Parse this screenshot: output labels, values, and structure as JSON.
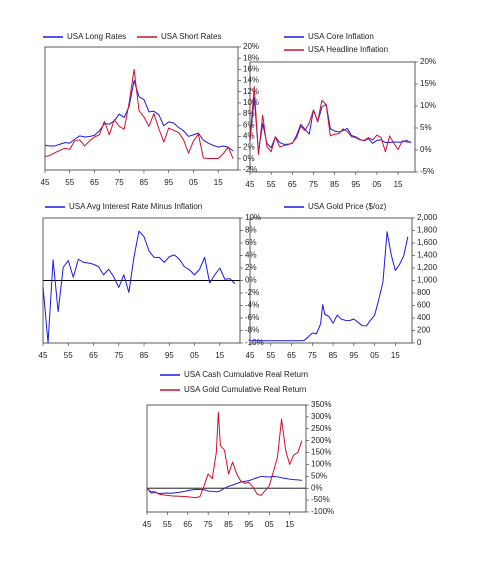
{
  "chart_data": [
    {
      "type": "line",
      "legend": "top",
      "y_axis_side": "right",
      "x": [
        1945,
        1947,
        1949,
        1951,
        1953,
        1955,
        1957,
        1959,
        1961,
        1963,
        1965,
        1967,
        1969,
        1971,
        1973,
        1975,
        1977,
        1979,
        1981,
        1983,
        1985,
        1987,
        1989,
        1991,
        1993,
        1995,
        1997,
        1999,
        2001,
        2003,
        2005,
        2007,
        2009,
        2011,
        2013,
        2015,
        2017,
        2019,
        2021
      ],
      "series": [
        {
          "name": "USA Long Rates",
          "color": "#1a1ae6",
          "values": [
            2.4,
            2.3,
            2.3,
            2.6,
            2.9,
            2.8,
            3.5,
            4.1,
            3.9,
            4.0,
            4.2,
            5.0,
            6.3,
            6.2,
            6.8,
            8.0,
            7.4,
            9.4,
            14,
            11.1,
            10.6,
            8.4,
            8.5,
            7.9,
            5.9,
            6.6,
            6.4,
            5.6,
            5.0,
            4.0,
            4.3,
            4.6,
            3.3,
            2.8,
            2.4,
            2.1,
            2.3,
            2.1,
            1.4
          ]
        },
        {
          "name": "USA Short Rates",
          "color": "#d0102b",
          "values": [
            0.4,
            0.6,
            1.1,
            1.5,
            1.9,
            1.7,
            3.2,
            3.4,
            2.3,
            3.2,
            3.9,
            4.3,
            6.7,
            4.3,
            7.0,
            5.8,
            5.3,
            10,
            16,
            8.6,
            7.5,
            5.8,
            8.1,
            5.4,
            3.0,
            5.5,
            5.1,
            4.7,
            3.4,
            1.0,
            3.2,
            4.4,
            0.15,
            0.05,
            0.06,
            0.05,
            0.9,
            2.1,
            0.05
          ]
        }
      ],
      "xlim": [
        1945,
        2023
      ],
      "xticks": [
        {
          "value": 1945,
          "label": "45"
        },
        {
          "value": 1955,
          "label": "55"
        },
        {
          "value": 1965,
          "label": "65"
        },
        {
          "value": 1975,
          "label": "75"
        },
        {
          "value": 1985,
          "label": "85"
        },
        {
          "value": 1995,
          "label": "95"
        },
        {
          "value": 2005,
          "label": "05"
        },
        {
          "value": 2015,
          "label": "15"
        }
      ],
      "ylim": [
        -2,
        20
      ],
      "yticks": [
        {
          "value": -2,
          "label": "-2%"
        },
        {
          "value": 0,
          "label": "0%"
        },
        {
          "value": 2,
          "label": "2%"
        },
        {
          "value": 4,
          "label": "4%"
        },
        {
          "value": 6,
          "label": "6%"
        },
        {
          "value": 8,
          "label": "8%"
        },
        {
          "value": 10,
          "label": "10%"
        },
        {
          "value": 12,
          "label": "12%"
        },
        {
          "value": 14,
          "label": "14%"
        },
        {
          "value": 16,
          "label": "16%"
        },
        {
          "value": 18,
          "label": "18%"
        },
        {
          "value": 20,
          "label": "20%"
        }
      ],
      "zero_line": false
    },
    {
      "type": "line",
      "legend": "top",
      "y_axis_side": "right",
      "x": [
        1945,
        1947,
        1949,
        1951,
        1953,
        1955,
        1957,
        1959,
        1961,
        1963,
        1965,
        1967,
        1969,
        1971,
        1973,
        1975,
        1977,
        1979,
        1981,
        1983,
        1985,
        1987,
        1989,
        1991,
        1993,
        1995,
        1997,
        1999,
        2001,
        2003,
        2005,
        2007,
        2009,
        2011,
        2013,
        2015,
        2017,
        2019,
        2021
      ],
      "series": [
        {
          "name": "USA Core Inflation",
          "color": "#1a1ae6",
          "values": [
            2.0,
            12,
            -0.5,
            6,
            1.5,
            0.5,
            3.0,
            1.7,
            1.3,
            1.3,
            1.5,
            3.3,
            5.8,
            4.7,
            3.6,
            9.1,
            6.4,
            9.8,
            10.4,
            4.8,
            4.3,
            4.1,
            4.4,
            4.9,
            3.3,
            3.0,
            2.4,
            2.1,
            2.6,
            1.5,
            2.2,
            2.3,
            1.7,
            1.7,
            1.8,
            1.8,
            1.8,
            2.2,
            1.6
          ]
        },
        {
          "name": "USA Headline Inflation",
          "color": "#d0102b",
          "values": [
            2.3,
            14.4,
            -1.0,
            7.9,
            0.8,
            -0.4,
            3.0,
            0.7,
            1.0,
            1.2,
            1.6,
            2.8,
            5.4,
            4.4,
            6.2,
            9.1,
            6.5,
            11.3,
            10.3,
            3.2,
            3.6,
            3.7,
            4.8,
            4.2,
            3.0,
            2.8,
            2.3,
            2.2,
            2.8,
            2.3,
            3.4,
            2.8,
            -0.4,
            3.2,
            1.5,
            0.1,
            2.1,
            1.8,
            1.9
          ]
        }
      ],
      "xlim": [
        1945,
        2023
      ],
      "xticks": [
        {
          "value": 1945,
          "label": "45"
        },
        {
          "value": 1955,
          "label": "55"
        },
        {
          "value": 1965,
          "label": "65"
        },
        {
          "value": 1975,
          "label": "75"
        },
        {
          "value": 1985,
          "label": "85"
        },
        {
          "value": 1995,
          "label": "95"
        },
        {
          "value": 2005,
          "label": "05"
        },
        {
          "value": 2015,
          "label": "15"
        }
      ],
      "ylim": [
        -5,
        20
      ],
      "yticks": [
        {
          "value": -5,
          "label": "-5%"
        },
        {
          "value": 0,
          "label": "0%"
        },
        {
          "value": 5,
          "label": "5%"
        },
        {
          "value": 10,
          "label": "10%"
        },
        {
          "value": 15,
          "label": "15%"
        },
        {
          "value": 20,
          "label": "20%"
        }
      ],
      "zero_line": false
    },
    {
      "type": "line",
      "legend": "top",
      "y_axis_side": "right",
      "x": [
        1945,
        1947,
        1949,
        1951,
        1953,
        1955,
        1957,
        1959,
        1961,
        1963,
        1965,
        1967,
        1969,
        1971,
        1973,
        1975,
        1977,
        1979,
        1981,
        1983,
        1985,
        1987,
        1989,
        1991,
        1993,
        1995,
        1997,
        1999,
        2001,
        2003,
        2005,
        2007,
        2009,
        2011,
        2013,
        2015,
        2017,
        2019,
        2021
      ],
      "series": [
        {
          "name": "USA Avg Interest Rate Minus Inflation",
          "color": "#1a1ae6",
          "values": [
            -1,
            -10,
            3.3,
            -5,
            2.1,
            3.2,
            0.5,
            3.4,
            2.9,
            2.8,
            2.6,
            2.2,
            0.9,
            1.8,
            0.6,
            -1.1,
            0.9,
            -1.9,
            3.7,
            7.9,
            7.0,
            4.7,
            3.7,
            3.7,
            2.9,
            3.8,
            4.1,
            3.4,
            2.2,
            1.7,
            0.9,
            1.8,
            3.7,
            -0.4,
            0.9,
            2.0,
            0.2,
            0.3,
            -0.5
          ]
        }
      ],
      "xlim": [
        1945,
        2023
      ],
      "xticks": [
        {
          "value": 1945,
          "label": "45"
        },
        {
          "value": 1955,
          "label": "55"
        },
        {
          "value": 1965,
          "label": "65"
        },
        {
          "value": 1975,
          "label": "75"
        },
        {
          "value": 1985,
          "label": "85"
        },
        {
          "value": 1995,
          "label": "95"
        },
        {
          "value": 2005,
          "label": "05"
        },
        {
          "value": 2015,
          "label": "15"
        }
      ],
      "ylim": [
        -10,
        10
      ],
      "yticks": [
        {
          "value": -10,
          "label": "-10%"
        },
        {
          "value": -8,
          "label": "-8%"
        },
        {
          "value": -6,
          "label": "-6%"
        },
        {
          "value": -4,
          "label": "-4%"
        },
        {
          "value": -2,
          "label": "-2%"
        },
        {
          "value": 0,
          "label": "0%"
        },
        {
          "value": 2,
          "label": "2%"
        },
        {
          "value": 4,
          "label": "4%"
        },
        {
          "value": 6,
          "label": "6%"
        },
        {
          "value": 8,
          "label": "8%"
        },
        {
          "value": 10,
          "label": "10%"
        }
      ],
      "zero_line": true
    },
    {
      "type": "line",
      "legend": "top",
      "y_axis_side": "right",
      "x": [
        1945,
        1947,
        1949,
        1951,
        1953,
        1955,
        1957,
        1959,
        1961,
        1963,
        1965,
        1967,
        1969,
        1971,
        1973,
        1975,
        1977,
        1979,
        1980,
        1981,
        1983,
        1985,
        1987,
        1989,
        1991,
        1993,
        1995,
        1997,
        1999,
        2001,
        2003,
        2005,
        2007,
        2009,
        2011,
        2013,
        2015,
        2017,
        2019,
        2021
      ],
      "series": [
        {
          "name": "USA Gold Price ($/oz)",
          "color": "#1a1ae6",
          "values": [
            35,
            35,
            35,
            35,
            35,
            35,
            35,
            35,
            35,
            35,
            35,
            35,
            35,
            40,
            97,
            160,
            148,
            307,
            615,
            460,
            424,
            317,
            447,
            381,
            362,
            360,
            384,
            331,
            279,
            271,
            363,
            445,
            695,
            972,
            1780,
            1411,
            1160,
            1257,
            1393,
            1700
          ]
        }
      ],
      "xlim": [
        1945,
        2023
      ],
      "xticks": [
        {
          "value": 1945,
          "label": "45"
        },
        {
          "value": 1955,
          "label": "55"
        },
        {
          "value": 1965,
          "label": "65"
        },
        {
          "value": 1975,
          "label": "75"
        },
        {
          "value": 1985,
          "label": "85"
        },
        {
          "value": 1995,
          "label": "95"
        },
        {
          "value": 2005,
          "label": "05"
        },
        {
          "value": 2015,
          "label": "15"
        }
      ],
      "ylim": [
        0,
        2000
      ],
      "yticks": [
        0,
        200,
        400,
        600,
        800,
        {
          "value": 1000,
          "label": "1,000"
        },
        {
          "value": 1200,
          "label": "1,200"
        },
        {
          "value": 1400,
          "label": "1,400"
        },
        {
          "value": 1600,
          "label": "1,600"
        },
        {
          "value": 1800,
          "label": "1,800"
        },
        {
          "value": 2000,
          "label": "2,000"
        }
      ],
      "zero_line": false
    },
    {
      "type": "line",
      "legend": "top",
      "y_axis_side": "right",
      "x": [
        1945,
        1947,
        1949,
        1951,
        1953,
        1955,
        1957,
        1959,
        1961,
        1963,
        1965,
        1967,
        1969,
        1971,
        1973,
        1975,
        1977,
        1979,
        1980,
        1981,
        1983,
        1985,
        1987,
        1989,
        1991,
        1993,
        1995,
        1997,
        1999,
        2001,
        2003,
        2005,
        2007,
        2009,
        2011,
        2013,
        2015,
        2017,
        2019,
        2021
      ],
      "series": [
        {
          "name": "USA Cash Cumulative Real Return",
          "color": "#1a1ae6",
          "values": [
            0,
            -20,
            -18,
            -22,
            -21,
            -20,
            -21,
            -19,
            -17,
            -14,
            -10,
            -7,
            -5,
            -6,
            -6,
            -12,
            -13,
            -15,
            -14,
            -11,
            0,
            8,
            13,
            20,
            26,
            29,
            32,
            38,
            44,
            50,
            48,
            47,
            50,
            48,
            44,
            41,
            38,
            36,
            35,
            33
          ]
        },
        {
          "name": "USA Gold Cumulative Real Return",
          "color": "#d0102b",
          "values": [
            0,
            -15,
            -15,
            -25,
            -28,
            -30,
            -32,
            -33,
            -34,
            -35,
            -36,
            -38,
            -40,
            -35,
            10,
            60,
            40,
            150,
            320,
            180,
            160,
            60,
            110,
            60,
            30,
            20,
            25,
            5,
            -25,
            -30,
            -10,
            10,
            70,
            130,
            290,
            160,
            100,
            140,
            150,
            200
          ]
        }
      ],
      "xlim": [
        1945,
        2023
      ],
      "xticks": [
        {
          "value": 1945,
          "label": "45"
        },
        {
          "value": 1955,
          "label": "55"
        },
        {
          "value": 1965,
          "label": "65"
        },
        {
          "value": 1975,
          "label": "75"
        },
        {
          "value": 1985,
          "label": "85"
        },
        {
          "value": 1995,
          "label": "95"
        },
        {
          "value": 2005,
          "label": "05"
        },
        {
          "value": 2015,
          "label": "15"
        }
      ],
      "ylim": [
        -100,
        350
      ],
      "yticks": [
        {
          "value": -100,
          "label": "-100%"
        },
        {
          "value": -50,
          "label": "-50%"
        },
        {
          "value": 0,
          "label": "0%"
        },
        {
          "value": 50,
          "label": "50%"
        },
        {
          "value": 100,
          "label": "100%"
        },
        {
          "value": 150,
          "label": "150%"
        },
        {
          "value": 200,
          "label": "200%"
        },
        {
          "value": 250,
          "label": "250%"
        },
        {
          "value": 300,
          "label": "300%"
        },
        {
          "value": 350,
          "label": "350%"
        }
      ],
      "zero_line": true
    }
  ]
}
